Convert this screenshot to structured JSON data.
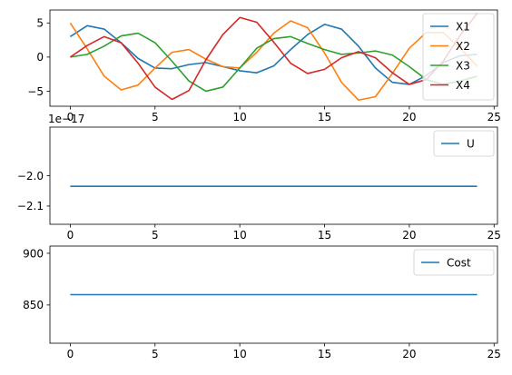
{
  "chart_data": [
    {
      "type": "line",
      "title": "",
      "xlabel": "",
      "ylabel": "",
      "xlim": [
        -1.2,
        25.2
      ],
      "ylim": [
        -7.2,
        6.9
      ],
      "xticks": [
        0,
        5,
        10,
        15,
        20,
        25
      ],
      "xtick_labels": [
        "0",
        "5",
        "10",
        "15",
        "20",
        "25"
      ],
      "yticks": [
        -5,
        0,
        5
      ],
      "ytick_labels": [
        "−5",
        "0",
        "5"
      ],
      "offset_text": "",
      "grid": false,
      "legend_position": "top-right",
      "x": [
        0,
        1,
        2,
        3,
        4,
        5,
        6,
        7,
        8,
        9,
        10,
        11,
        12,
        13,
        14,
        15,
        16,
        17,
        18,
        19,
        20,
        21,
        22,
        23,
        24
      ],
      "series": [
        {
          "name": "X1",
          "color": "#1f77b4",
          "values": [
            3.0,
            4.6,
            4.1,
            2.1,
            -0.2,
            -1.6,
            -1.7,
            -1.1,
            -0.8,
            -1.4,
            -2.0,
            -2.3,
            -1.3,
            1.1,
            3.3,
            4.8,
            4.1,
            1.6,
            -1.6,
            -3.7,
            -4.0,
            -2.7,
            -0.8,
            0.2,
            0.4
          ]
        },
        {
          "name": "X2",
          "color": "#ff7f0e",
          "values": [
            5.0,
            1.2,
            -2.8,
            -4.8,
            -4.1,
            -1.6,
            0.7,
            1.1,
            -0.3,
            -1.4,
            -1.6,
            0.7,
            3.5,
            5.3,
            4.3,
            0.6,
            -3.7,
            -6.3,
            -5.8,
            -2.4,
            1.3,
            3.6,
            3.6,
            1.3,
            -1.3
          ]
        },
        {
          "name": "X3",
          "color": "#2ca02c",
          "values": [
            0.0,
            0.4,
            1.6,
            3.1,
            3.5,
            2.1,
            -0.6,
            -3.5,
            -5.0,
            -4.4,
            -1.6,
            1.3,
            2.7,
            3.0,
            2.0,
            1.1,
            0.4,
            0.6,
            0.9,
            0.3,
            -1.4,
            -3.3,
            -4.0,
            -3.5,
            -2.8
          ]
        },
        {
          "name": "X4",
          "color": "#d62728",
          "values": [
            0.0,
            1.7,
            3.0,
            2.1,
            -0.9,
            -4.4,
            -6.2,
            -4.9,
            -0.4,
            3.3,
            5.8,
            5.1,
            2.2,
            -0.9,
            -2.4,
            -1.8,
            -0.1,
            0.8,
            -0.1,
            -2.3,
            -4.0,
            -3.3,
            -0.6,
            3.2,
            6.4
          ]
        }
      ]
    },
    {
      "type": "line",
      "title": "",
      "xlabel": "",
      "ylabel": "",
      "xlim": [
        -1.2,
        25.2
      ],
      "ylim": [
        -2.16,
        -1.84
      ],
      "xticks": [
        0,
        5,
        10,
        15,
        20,
        25
      ],
      "xtick_labels": [
        "0",
        "5",
        "10",
        "15",
        "20",
        "25"
      ],
      "yticks": [
        -2.1,
        -2.0
      ],
      "ytick_labels": [
        "−2.1",
        "−2.0"
      ],
      "offset_text": "1e−17",
      "grid": false,
      "legend_position": "top-right",
      "x": [
        0,
        1,
        2,
        3,
        4,
        5,
        6,
        7,
        8,
        9,
        10,
        11,
        12,
        13,
        14,
        15,
        16,
        17,
        18,
        19,
        20,
        21,
        22,
        23,
        24
      ],
      "series": [
        {
          "name": "U",
          "color": "#1f77b4",
          "values": [
            -2.035,
            -2.035,
            -2.035,
            -2.035,
            -2.035,
            -2.035,
            -2.035,
            -2.035,
            -2.035,
            -2.035,
            -2.035,
            -2.035,
            -2.035,
            -2.035,
            -2.035,
            -2.035,
            -2.035,
            -2.035,
            -2.035,
            -2.035,
            -2.035,
            -2.035,
            -2.035,
            -2.035,
            -2.035
          ]
        }
      ]
    },
    {
      "type": "line",
      "title": "",
      "xlabel": "",
      "ylabel": "",
      "xlim": [
        -1.2,
        25.2
      ],
      "ylim": [
        813,
        907
      ],
      "xticks": [
        0,
        5,
        10,
        15,
        20,
        25
      ],
      "xtick_labels": [
        "0",
        "5",
        "10",
        "15",
        "20",
        "25"
      ],
      "yticks": [
        850,
        900
      ],
      "ytick_labels": [
        "850",
        "900"
      ],
      "offset_text": "",
      "grid": false,
      "legend_position": "top-right",
      "x": [
        0,
        1,
        2,
        3,
        4,
        5,
        6,
        7,
        8,
        9,
        10,
        11,
        12,
        13,
        14,
        15,
        16,
        17,
        18,
        19,
        20,
        21,
        22,
        23,
        24
      ],
      "series": [
        {
          "name": "Cost",
          "color": "#1f77b4",
          "values": [
            860,
            860,
            860,
            860,
            860,
            860,
            860,
            860,
            860,
            860,
            860,
            860,
            860,
            860,
            860,
            860,
            860,
            860,
            860,
            860,
            860,
            860,
            860,
            860,
            860
          ]
        }
      ]
    }
  ]
}
